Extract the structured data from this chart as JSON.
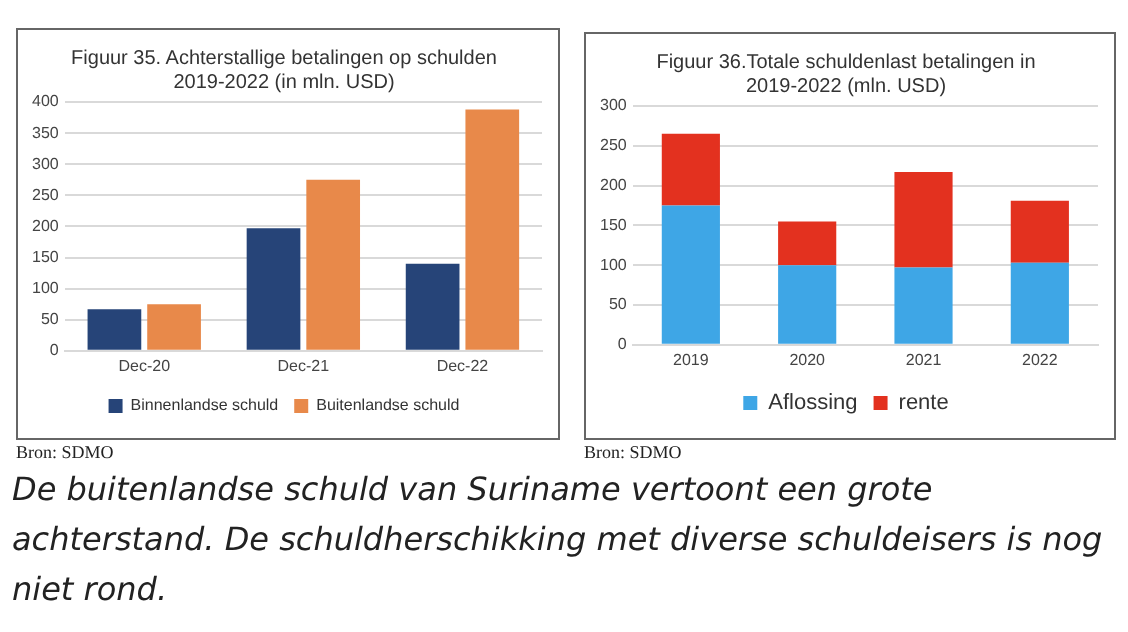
{
  "chart_data": [
    {
      "type": "bar",
      "title": "Figuur 35. Achterstallige betalingen op schulden\n2019-2022 (in mln. USD)",
      "categories": [
        "Dec-20",
        "Dec-21",
        "Dec-22"
      ],
      "series": [
        {
          "name": "Binnenlandse schuld",
          "color": "#264478",
          "values": [
            67,
            197,
            140
          ]
        },
        {
          "name": "Buitenlandse schuld",
          "color": "#e8894a",
          "values": [
            75,
            275,
            388
          ]
        }
      ],
      "ylim": [
        0,
        400
      ],
      "yticks": [
        0,
        50,
        100,
        150,
        200,
        250,
        300,
        350,
        400
      ],
      "grid": "y",
      "legend": "bottom",
      "annotations": [
        "Bron: SDMO",
        "De buitenlandse schuld van Suriname vertoont een grote achterstand. De schuldherschikking met diverse schuldeisers is nog niet rond."
      ]
    },
    {
      "type": "bar",
      "title": "Figuur 36.Totale schuldenlast betalingen in\n2019-2022 (mln. USD)",
      "categories": [
        "2019",
        "2020",
        "2021",
        "2022"
      ],
      "stacked": true,
      "series": [
        {
          "name": "Aflossing",
          "color": "#3ea6e6",
          "values": [
            175,
            100,
            97,
            103
          ]
        },
        {
          "name": "rente",
          "color": "#e3311f",
          "values": [
            90,
            55,
            120,
            78
          ]
        }
      ],
      "ylim": [
        0,
        300
      ],
      "yticks": [
        0,
        50,
        100,
        150,
        200,
        250,
        300
      ],
      "grid": "y",
      "legend": "bottom",
      "annotations": [
        "Bron: SDMO"
      ]
    }
  ]
}
